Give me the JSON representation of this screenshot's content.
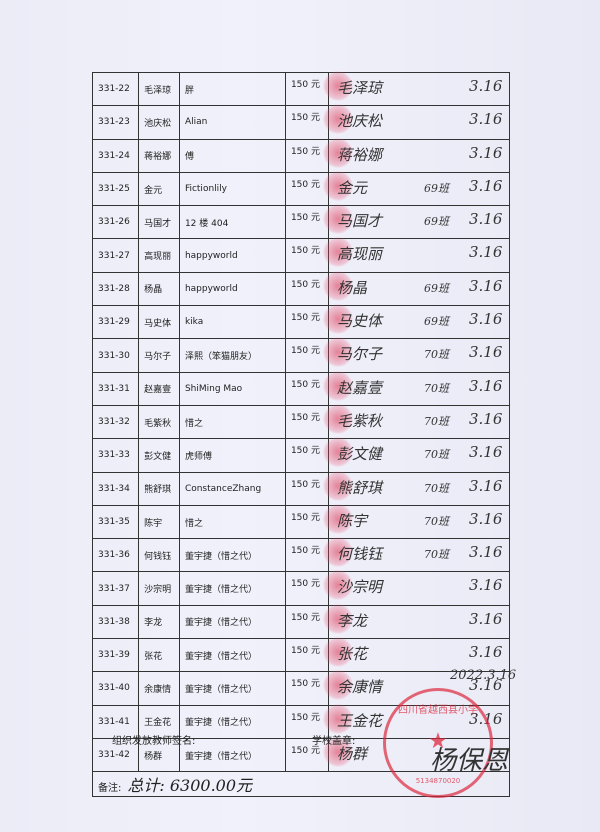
{
  "currency_suffix": "150 元",
  "rows": [
    {
      "id": "331-22",
      "name": "毛泽琼",
      "donor": "胖",
      "amount": "150 元",
      "sig": "毛泽琼",
      "cls": "",
      "date": "3.16"
    },
    {
      "id": "331-23",
      "name": "池庆松",
      "donor": "Alian",
      "amount": "150 元",
      "sig": "池庆松",
      "cls": "",
      "date": "3.16"
    },
    {
      "id": "331-24",
      "name": "蒋裕娜",
      "donor": "傅",
      "amount": "150 元",
      "sig": "蒋裕娜",
      "cls": "",
      "date": "3.16"
    },
    {
      "id": "331-25",
      "name": "金元",
      "donor": "Fictionlily",
      "amount": "150 元",
      "sig": "金元",
      "cls": "69班",
      "date": "3.16"
    },
    {
      "id": "331-26",
      "name": "马国才",
      "donor": "12 楼 404",
      "amount": "150 元",
      "sig": "马国才",
      "cls": "69班",
      "date": "3.16"
    },
    {
      "id": "331-27",
      "name": "高现丽",
      "donor": "happyworld",
      "amount": "150 元",
      "sig": "高现丽",
      "cls": "",
      "date": "3.16"
    },
    {
      "id": "331-28",
      "name": "杨晶",
      "donor": "happyworld",
      "amount": "150 元",
      "sig": "杨晶",
      "cls": "69班",
      "date": "3.16"
    },
    {
      "id": "331-29",
      "name": "马史体",
      "donor": "kika",
      "amount": "150 元",
      "sig": "马史体",
      "cls": "69班",
      "date": "3.16"
    },
    {
      "id": "331-30",
      "name": "马尔子",
      "donor": "泽熙（笨猫朋友）",
      "amount": "150 元",
      "sig": "马尔子",
      "cls": "70班",
      "date": "3.16"
    },
    {
      "id": "331-31",
      "name": "赵嘉壹",
      "donor": "ShiMing Mao",
      "amount": "150 元",
      "sig": "赵嘉壹",
      "cls": "70班",
      "date": "3.16"
    },
    {
      "id": "331-32",
      "name": "毛紫秋",
      "donor": "惜之",
      "amount": "150 元",
      "sig": "毛紫秋",
      "cls": "70班",
      "date": "3.16"
    },
    {
      "id": "331-33",
      "name": "彭文健",
      "donor": "虎师傅",
      "amount": "150 元",
      "sig": "彭文健",
      "cls": "70班",
      "date": "3.16"
    },
    {
      "id": "331-34",
      "name": "熊舒琪",
      "donor": "ConstanceZhang",
      "amount": "150 元",
      "sig": "熊舒琪",
      "cls": "70班",
      "date": "3.16"
    },
    {
      "id": "331-35",
      "name": "陈宇",
      "donor": "惜之",
      "amount": "150 元",
      "sig": "陈宇",
      "cls": "70班",
      "date": "3.16"
    },
    {
      "id": "331-36",
      "name": "何钱钰",
      "donor": "董宇捷（惜之代）",
      "amount": "150 元",
      "sig": "何钱钰",
      "cls": "70班",
      "date": "3.16"
    },
    {
      "id": "331-37",
      "name": "沙宗明",
      "donor": "董宇捷（惜之代）",
      "amount": "150 元",
      "sig": "沙宗明",
      "cls": "",
      "date": "3.16"
    },
    {
      "id": "331-38",
      "name": "李龙",
      "donor": "董宇捷（惜之代）",
      "amount": "150 元",
      "sig": "李龙",
      "cls": "",
      "date": "3.16"
    },
    {
      "id": "331-39",
      "name": "张花",
      "donor": "董宇捷（惜之代）",
      "amount": "150 元",
      "sig": "张花",
      "cls": "",
      "date": "3.16"
    },
    {
      "id": "331-40",
      "name": "余康情",
      "donor": "董宇捷（惜之代）",
      "amount": "150 元",
      "sig": "余康情",
      "cls": "",
      "date": "3.16"
    },
    {
      "id": "331-41",
      "name": "王金花",
      "donor": "董宇捷（惜之代）",
      "amount": "150 元",
      "sig": "王金花",
      "cls": "",
      "date": "3.16"
    },
    {
      "id": "331-42",
      "name": "杨群",
      "donor": "董宇捷（惜之代）",
      "amount": "150 元",
      "sig": "杨群",
      "cls": "",
      "date": ""
    }
  ],
  "remark_label": "备注:",
  "remark_value": "总计: 6300.00元",
  "final_date": "2022.3.16",
  "teacher_sign_label": "组织发放教师签名:",
  "school_stamp_label": "学校盖章:",
  "principal_signature": "杨保恩",
  "stamp_text": "四川省越西县小学",
  "stamp_code": "5134870020"
}
